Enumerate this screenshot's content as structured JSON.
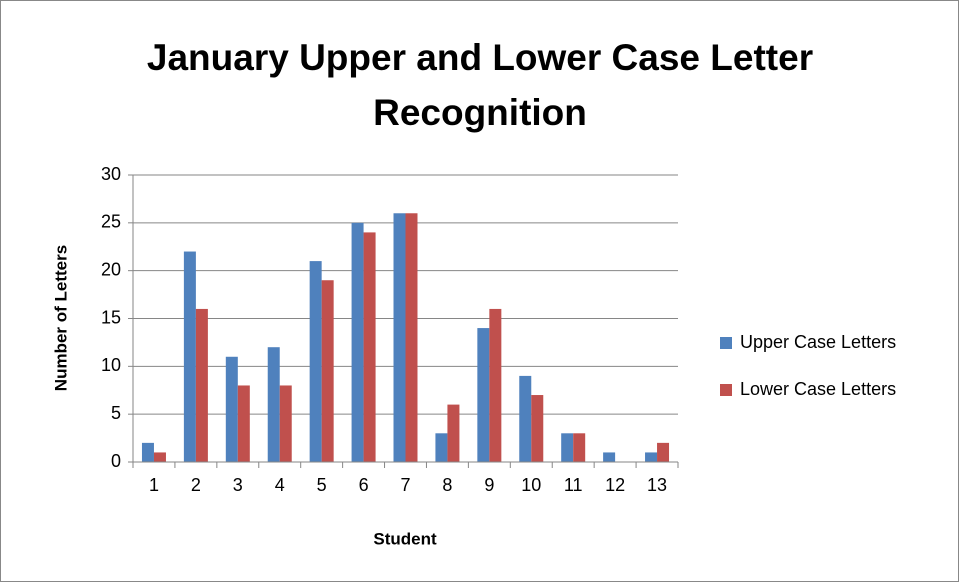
{
  "chart_data": {
    "type": "bar",
    "title": "January Upper and Lower Case Letter Recognition",
    "x_label": "Student",
    "y_label": "Number of Letters",
    "categories": [
      "1",
      "2",
      "3",
      "4",
      "5",
      "6",
      "7",
      "8",
      "9",
      "10",
      "11",
      "12",
      "13"
    ],
    "series": [
      {
        "name": "Upper Case Letters",
        "color": "#4f81bd",
        "values": [
          2,
          22,
          11,
          12,
          21,
          25,
          26,
          3,
          14,
          9,
          3,
          1,
          1
        ]
      },
      {
        "name": "Lower Case Letters",
        "color": "#c0504d",
        "values": [
          1,
          16,
          8,
          8,
          19,
          24,
          26,
          6,
          16,
          7,
          3,
          0,
          2
        ]
      }
    ],
    "ylim": [
      0,
      30
    ],
    "yticks": [
      0,
      5,
      10,
      15,
      20,
      25,
      30
    ],
    "grid": true,
    "legend": "right"
  }
}
